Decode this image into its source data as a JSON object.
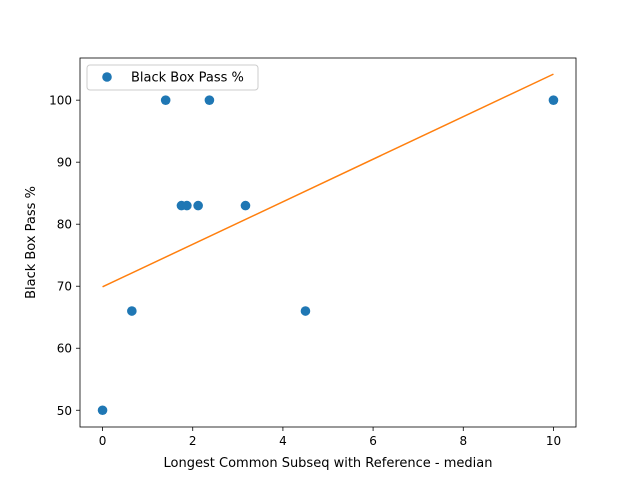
{
  "chart_data": {
    "type": "scatter",
    "title": "",
    "xlabel": "Longest Common Subseq with Reference - median",
    "ylabel": "Black Box Pass %",
    "xlim": [
      -0.5,
      10.5
    ],
    "ylim": [
      47.3,
      106.8
    ],
    "xticks": [
      0,
      2,
      4,
      6,
      8,
      10
    ],
    "yticks": [
      50,
      60,
      70,
      80,
      90,
      100
    ],
    "grid": false,
    "legend": {
      "position": "upper left",
      "entries": [
        "Black Box Pass %"
      ]
    },
    "series": [
      {
        "name": "Black Box Pass %",
        "kind": "points",
        "color": "#1f77b4",
        "points": [
          {
            "x": 0.0,
            "y": 50
          },
          {
            "x": 0.65,
            "y": 66
          },
          {
            "x": 1.4,
            "y": 100
          },
          {
            "x": 1.75,
            "y": 83
          },
          {
            "x": 1.87,
            "y": 83
          },
          {
            "x": 2.12,
            "y": 83
          },
          {
            "x": 2.37,
            "y": 100
          },
          {
            "x": 3.17,
            "y": 83
          },
          {
            "x": 4.5,
            "y": 66
          },
          {
            "x": 10.0,
            "y": 100
          }
        ]
      },
      {
        "kind": "line",
        "color": "#ff7f0e",
        "points": [
          {
            "x": 0.0,
            "y": 69.9
          },
          {
            "x": 10.0,
            "y": 104.2
          }
        ]
      }
    ]
  }
}
